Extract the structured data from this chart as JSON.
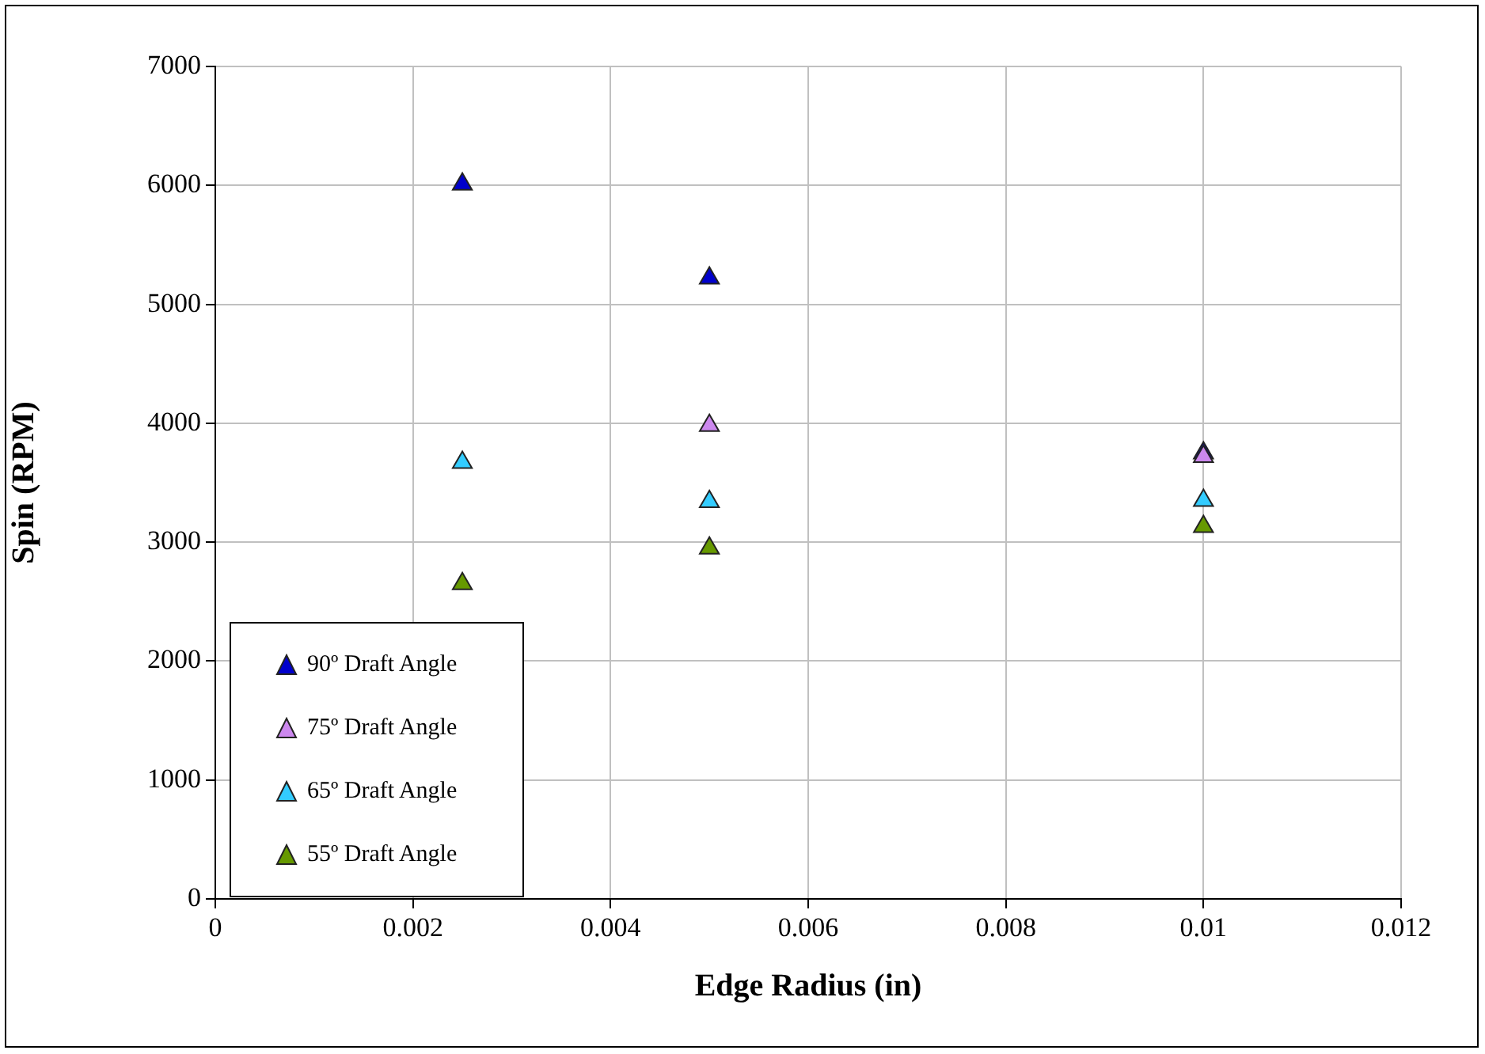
{
  "chart_data": {
    "type": "scatter",
    "xlabel": "Edge Radius (in)",
    "ylabel": "Spin (RPM)",
    "xlim": [
      0,
      0.012
    ],
    "xticks": [
      0,
      0.002,
      0.004,
      0.006,
      0.008,
      0.01,
      0.012
    ],
    "ylim": [
      0,
      7000
    ],
    "yticks": [
      0,
      1000,
      2000,
      3000,
      4000,
      5000,
      6000,
      7000
    ],
    "grid": true,
    "legend": "bottom left",
    "marker": "triangle",
    "series": [
      {
        "name": "90º Draft Angle",
        "color": "#0000cc",
        "x": [
          0.0025,
          0.005,
          0.01
        ],
        "values": [
          6010,
          5220,
          3750
        ]
      },
      {
        "name": "75º Draft Angle",
        "color": "#cc88ee",
        "x": [
          0.005,
          0.01
        ],
        "values": [
          3980,
          3720
        ]
      },
      {
        "name": "65º Draft Angle",
        "color": "#33ccff",
        "x": [
          0.0025,
          0.005,
          0.01
        ],
        "values": [
          3670,
          3340,
          3350
        ]
      },
      {
        "name": "55º Draft Angle",
        "color": "#669900",
        "x": [
          0.0025,
          0.005,
          0.01
        ],
        "values": [
          2650,
          2950,
          3130
        ]
      }
    ]
  }
}
